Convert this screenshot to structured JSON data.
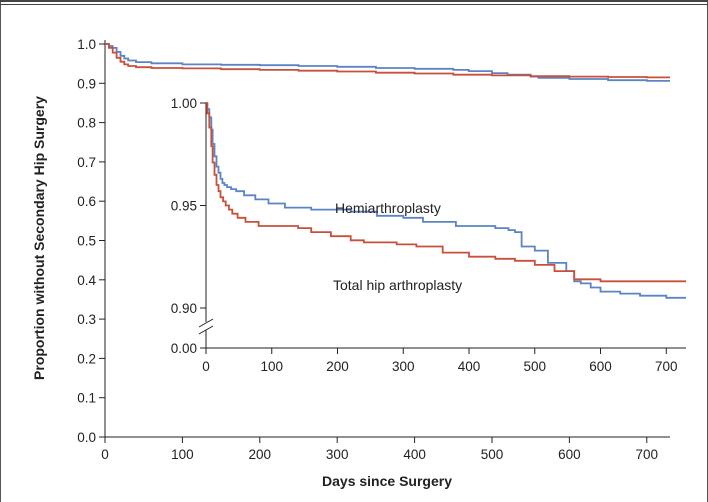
{
  "chart_data": [
    {
      "type": "line",
      "title": "",
      "xlabel": "Days since Surgery",
      "ylabel": "Proportion without Secondary Hip Surgery",
      "xlim": [
        0,
        730
      ],
      "ylim": [
        0,
        1.0
      ],
      "x_ticks": [
        "0",
        "100",
        "200",
        "300",
        "400",
        "500",
        "600",
        "700"
      ],
      "y_ticks": [
        "0.0",
        "0.1",
        "0.2",
        "0.3",
        "0.4",
        "0.5",
        "0.6",
        "0.7",
        "0.8",
        "0.9",
        "1.0"
      ],
      "grid": false,
      "legend": "none",
      "series": [
        {
          "color": "#5b84c4",
          "x": [
            0,
            5,
            10,
            15,
            20,
            25,
            30,
            40,
            60,
            100,
            150,
            200,
            250,
            300,
            350,
            400,
            450,
            470,
            500,
            520,
            550,
            560,
            600,
            650,
            700,
            730
          ],
          "y": [
            1.0,
            0.995,
            0.99,
            0.98,
            0.97,
            0.963,
            0.958,
            0.954,
            0.951,
            0.948,
            0.947,
            0.946,
            0.944,
            0.942,
            0.939,
            0.937,
            0.934,
            0.931,
            0.926,
            0.922,
            0.917,
            0.914,
            0.911,
            0.908,
            0.906,
            0.906
          ]
        },
        {
          "color": "#c8503a",
          "x": [
            0,
            5,
            10,
            15,
            20,
            25,
            30,
            40,
            60,
            100,
            150,
            200,
            250,
            300,
            350,
            400,
            450,
            500,
            550,
            600,
            650,
            700,
            730
          ],
          "y": [
            1.0,
            0.99,
            0.978,
            0.965,
            0.955,
            0.948,
            0.944,
            0.941,
            0.939,
            0.938,
            0.936,
            0.934,
            0.932,
            0.93,
            0.927,
            0.925,
            0.922,
            0.92,
            0.918,
            0.917,
            0.916,
            0.915,
            0.915
          ]
        }
      ]
    },
    {
      "type": "line",
      "title": "",
      "xlabel": "",
      "ylabel": "",
      "xlim": [
        0,
        730
      ],
      "ylim": [
        0.9,
        1.0
      ],
      "axis_break": true,
      "x_ticks": [
        "0",
        "100",
        "200",
        "300",
        "400",
        "500",
        "600",
        "700"
      ],
      "y_ticks": [
        "0.00",
        "0.90",
        "0.95",
        "1.00"
      ],
      "grid": false,
      "legend": "none",
      "series": [
        {
          "name": "Hemiarthroplasty",
          "color": "#5b84c4",
          "x": [
            0,
            2,
            5,
            8,
            10,
            13,
            16,
            19,
            22,
            25,
            28,
            32,
            38,
            46,
            58,
            75,
            95,
            120,
            160,
            195,
            220,
            260,
            300,
            330,
            380,
            440,
            460,
            470,
            480,
            500,
            520,
            548,
            560,
            570,
            585,
            600,
            630,
            660,
            700,
            730
          ],
          "y": [
            1.0,
            0.997,
            0.993,
            0.987,
            0.98,
            0.974,
            0.969,
            0.966,
            0.963,
            0.961,
            0.96,
            0.959,
            0.958,
            0.957,
            0.955,
            0.953,
            0.951,
            0.949,
            0.948,
            0.948,
            0.947,
            0.945,
            0.944,
            0.942,
            0.94,
            0.939,
            0.938,
            0.937,
            0.93,
            0.928,
            0.922,
            0.918,
            0.913,
            0.912,
            0.91,
            0.908,
            0.907,
            0.906,
            0.905,
            0.905
          ]
        },
        {
          "name": "Total hip arthroplasty",
          "color": "#c8503a",
          "x": [
            0,
            2,
            5,
            8,
            10,
            13,
            16,
            19,
            22,
            26,
            30,
            35,
            40,
            48,
            60,
            80,
            110,
            140,
            160,
            190,
            220,
            240,
            290,
            320,
            360,
            400,
            440,
            470,
            500,
            530,
            560,
            600,
            650,
            700,
            730
          ],
          "y": [
            1.0,
            0.995,
            0.988,
            0.979,
            0.971,
            0.965,
            0.96,
            0.957,
            0.954,
            0.952,
            0.95,
            0.948,
            0.946,
            0.944,
            0.942,
            0.94,
            0.94,
            0.939,
            0.937,
            0.935,
            0.933,
            0.932,
            0.931,
            0.93,
            0.927,
            0.925,
            0.924,
            0.923,
            0.921,
            0.918,
            0.914,
            0.913,
            0.913,
            0.913,
            0.913
          ]
        }
      ]
    }
  ]
}
